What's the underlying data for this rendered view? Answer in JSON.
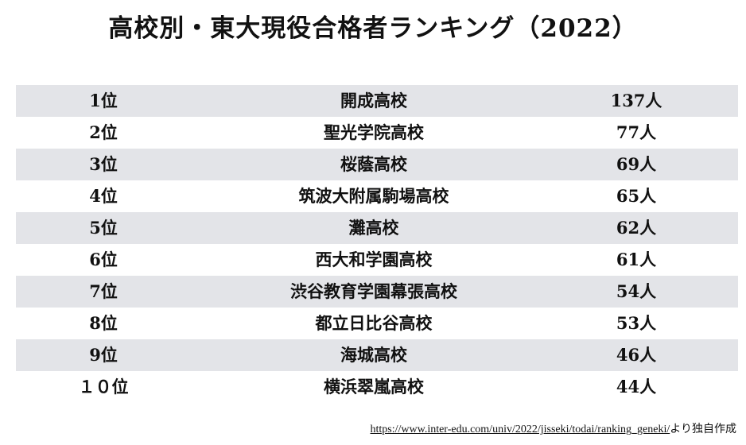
{
  "title": "高校別・東大現役合格者ランキング（2022）",
  "rows": [
    {
      "rank": "1位",
      "school": "開成高校",
      "count": "137人"
    },
    {
      "rank": "2位",
      "school": "聖光学院高校",
      "count": "77人"
    },
    {
      "rank": "3位",
      "school": "桜蔭高校",
      "count": "69人"
    },
    {
      "rank": "4位",
      "school": "筑波大附属駒場高校",
      "count": "65人"
    },
    {
      "rank": "5位",
      "school": "灘高校",
      "count": "62人"
    },
    {
      "rank": "6位",
      "school": "西大和学園高校",
      "count": "61人"
    },
    {
      "rank": "7位",
      "school": "渋谷教育学園幕張高校",
      "count": "54人"
    },
    {
      "rank": "8位",
      "school": "都立日比谷高校",
      "count": "53人"
    },
    {
      "rank": "9位",
      "school": "海城高校",
      "count": "46人"
    },
    {
      "rank": "１０位",
      "school": "横浜翠嵐高校",
      "count": "44人"
    }
  ],
  "source": {
    "url": "https://www.inter-edu.com/univ/2022/jisseki/todai/ranking_geneki/",
    "suffix": "より独自作成"
  },
  "colors": {
    "row_shade": "#e3e4e8",
    "text": "#111111"
  }
}
